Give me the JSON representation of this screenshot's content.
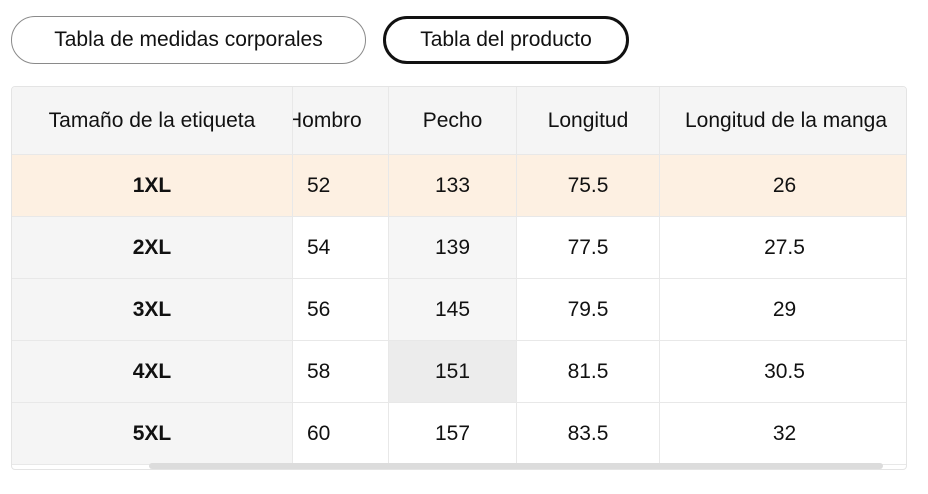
{
  "tabs": {
    "body_chart": "Tabla de medidas corporales",
    "product_chart": "Tabla del producto"
  },
  "table": {
    "headers": [
      "Tamaño de la etiqueta",
      "Hombro",
      "Pecho",
      "Longitud",
      "Longitud de la manga"
    ],
    "rows": [
      [
        "1XL",
        "52",
        "133",
        "75.5",
        "26"
      ],
      [
        "2XL",
        "54",
        "139",
        "77.5",
        "27.5"
      ],
      [
        "3XL",
        "56",
        "145",
        "79.5",
        "29"
      ],
      [
        "4XL",
        "58",
        "151",
        "81.5",
        "30.5"
      ],
      [
        "5XL",
        "60",
        "157",
        "83.5",
        "32"
      ]
    ]
  },
  "colors": {
    "highlight_row": "#fdf0e2",
    "header_bg": "#f5f5f5",
    "active_tab_border": "#111111"
  }
}
